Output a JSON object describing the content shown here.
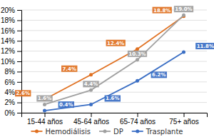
{
  "chart_data": {
    "type": "line",
    "categories": [
      "15-44 años",
      "45-64 años",
      "65-74 años",
      "75+ años"
    ],
    "series": [
      {
        "name": "Hemodiálisis",
        "color": "#E07020",
        "marker": "circle",
        "values": [
          2.6,
          7.4,
          12.4,
          18.8
        ],
        "value_labels": [
          "2.6%",
          "7.4%",
          "12.4%",
          "18.8%"
        ]
      },
      {
        "name": "DP",
        "color": "#A0A0A0",
        "marker": "circle",
        "values": [
          1.6,
          4.4,
          10.3,
          19.0
        ],
        "value_labels": [
          "1.6%",
          "4.4%",
          "10.3%",
          "19.0%"
        ]
      },
      {
        "name": "Trasplante",
        "color": "#3A6EC4",
        "marker": "circle",
        "values": [
          0.4,
          1.6,
          6.2,
          11.8
        ],
        "value_labels": [
          "0.4%",
          "1.6%",
          "6.2%",
          "11.8%"
        ]
      }
    ],
    "ylim": [
      0,
      20
    ],
    "yticks": [
      {
        "value": 0,
        "label": "0%"
      },
      {
        "value": 2,
        "label": "2%"
      },
      {
        "value": 4,
        "label": "4%"
      },
      {
        "value": 6,
        "label": "6%"
      },
      {
        "value": 8,
        "label": "8%"
      },
      {
        "value": 10,
        "label": "10%"
      },
      {
        "value": 12,
        "label": "12%"
      },
      {
        "value": 14,
        "label": "14%"
      },
      {
        "value": 16,
        "label": "16%"
      },
      {
        "value": 18,
        "label": "18%"
      },
      {
        "value": 20,
        "label": "20%"
      }
    ],
    "grid": true,
    "data_labels": true,
    "legend": "bottom"
  }
}
